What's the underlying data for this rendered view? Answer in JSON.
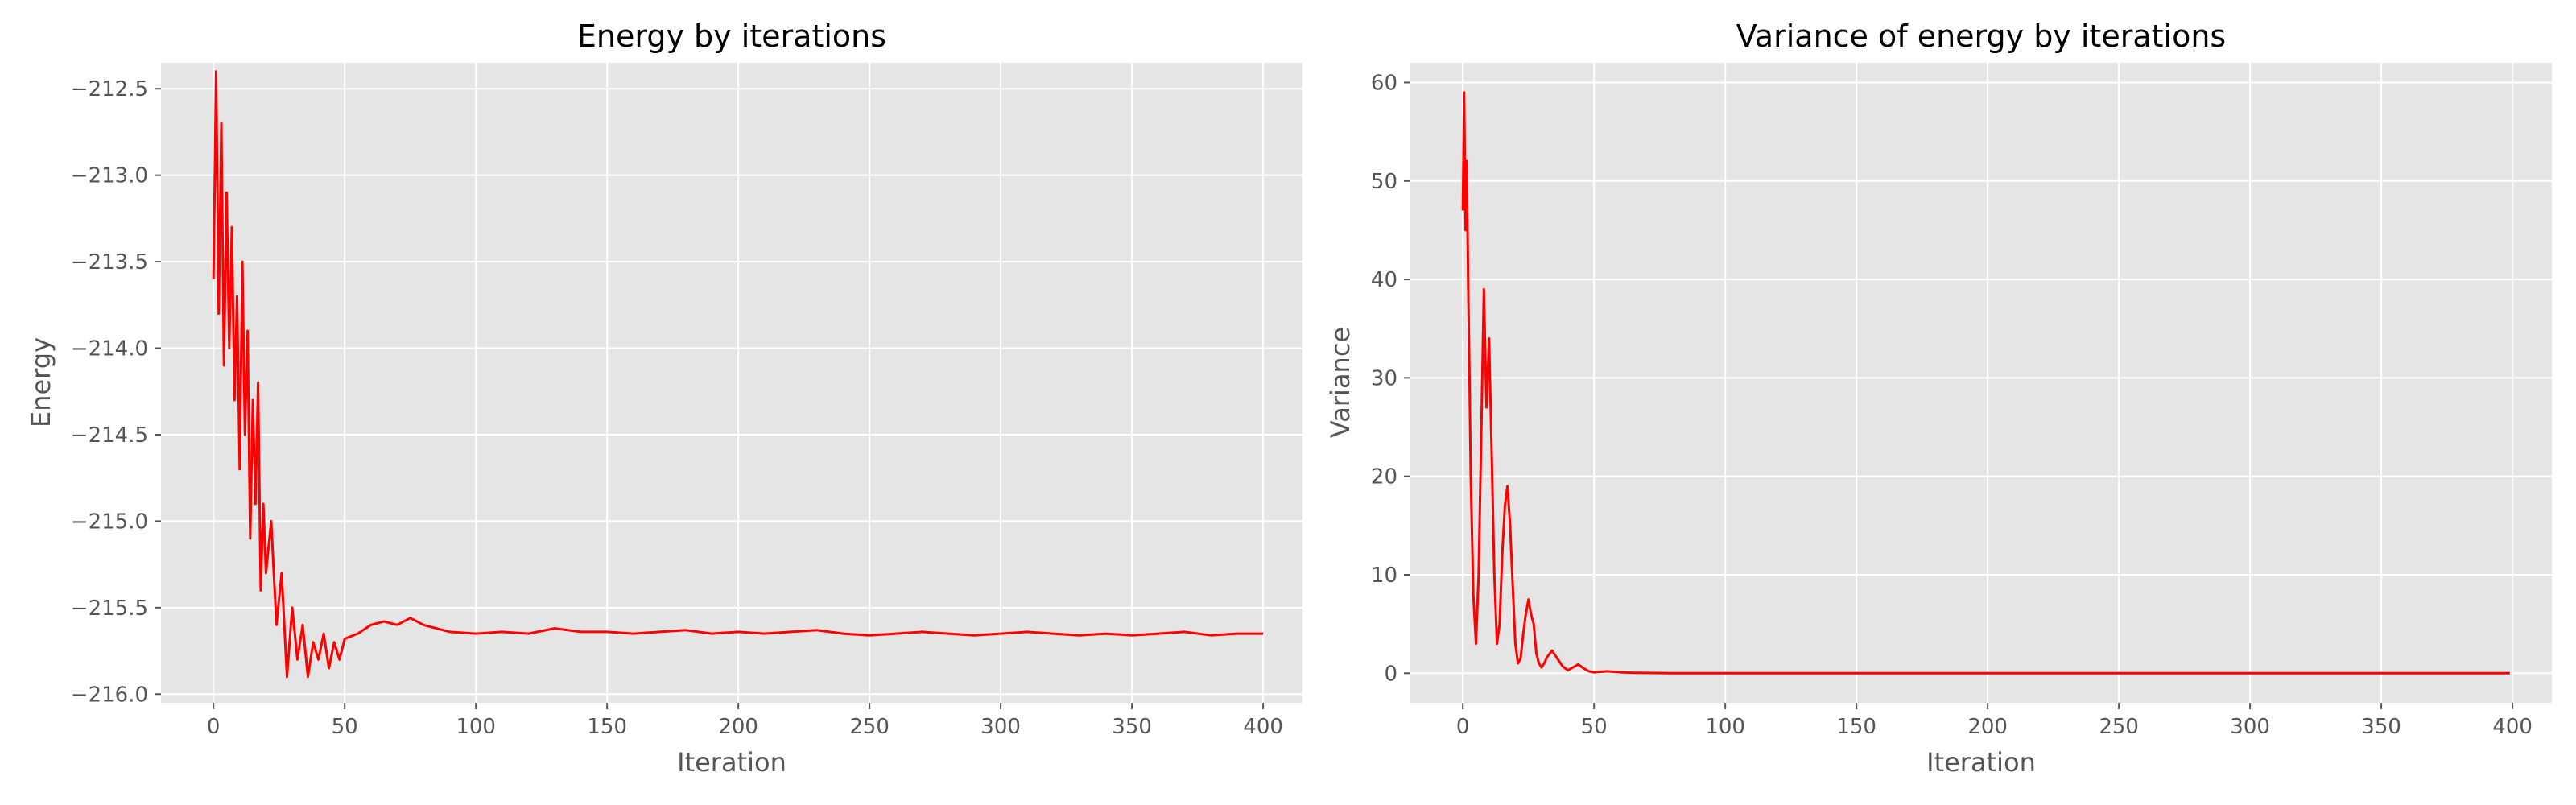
{
  "chart_data": [
    {
      "type": "line",
      "title": "Energy by iterations",
      "xlabel": "Iteration",
      "ylabel": "Energy",
      "xlim": [
        -20,
        415
      ],
      "ylim": [
        -216.05,
        -212.35
      ],
      "xticks": [
        0,
        50,
        100,
        150,
        200,
        250,
        300,
        350,
        400
      ],
      "yticks": [
        -216.0,
        -215.5,
        -215.0,
        -214.5,
        -214.0,
        -213.5,
        -213.0,
        -212.5
      ],
      "ytick_labels": [
        "−216.0",
        "−215.5",
        "−215.0",
        "−214.5",
        "−214.0",
        "−213.5",
        "−213.0",
        "−212.5"
      ],
      "grid": true,
      "color": "#ff0000",
      "series": [
        {
          "x": [
            0,
            1,
            2,
            3,
            4,
            5,
            6,
            7,
            8,
            9,
            10,
            11,
            12,
            13,
            14,
            15,
            16,
            17,
            18,
            19,
            20,
            22,
            24,
            26,
            28,
            30,
            32,
            34,
            36,
            38,
            40,
            42,
            44,
            46,
            48,
            50,
            55,
            60,
            65,
            70,
            75,
            80,
            90,
            100,
            110,
            120,
            130,
            140,
            150,
            160,
            170,
            180,
            190,
            200,
            210,
            220,
            230,
            240,
            250,
            260,
            270,
            280,
            290,
            300,
            310,
            320,
            330,
            340,
            350,
            360,
            370,
            380,
            390,
            400
          ],
          "y": [
            -213.6,
            -212.4,
            -213.8,
            -212.7,
            -214.1,
            -213.1,
            -214.0,
            -213.3,
            -214.3,
            -213.7,
            -214.7,
            -213.5,
            -214.5,
            -213.9,
            -215.1,
            -214.3,
            -214.9,
            -214.2,
            -215.4,
            -214.9,
            -215.3,
            -215.0,
            -215.6,
            -215.3,
            -215.9,
            -215.5,
            -215.8,
            -215.6,
            -215.9,
            -215.7,
            -215.8,
            -215.65,
            -215.85,
            -215.7,
            -215.8,
            -215.68,
            -215.65,
            -215.6,
            -215.58,
            -215.6,
            -215.56,
            -215.6,
            -215.64,
            -215.65,
            -215.64,
            -215.65,
            -215.62,
            -215.64,
            -215.64,
            -215.65,
            -215.64,
            -215.63,
            -215.65,
            -215.64,
            -215.65,
            -215.64,
            -215.63,
            -215.65,
            -215.66,
            -215.65,
            -215.64,
            -215.65,
            -215.66,
            -215.65,
            -215.64,
            -215.65,
            -215.66,
            -215.65,
            -215.66,
            -215.65,
            -215.64,
            -215.66,
            -215.65,
            -215.65
          ]
        }
      ]
    },
    {
      "type": "line",
      "title": "Variance of energy by iterations",
      "xlabel": "Iteration",
      "ylabel": "Variance",
      "xlim": [
        -20,
        415
      ],
      "ylim": [
        -3,
        62
      ],
      "xticks": [
        0,
        50,
        100,
        150,
        200,
        250,
        300,
        350,
        400
      ],
      "yticks": [
        0,
        10,
        20,
        30,
        40,
        50,
        60
      ],
      "ytick_labels": [
        "0",
        "10",
        "20",
        "30",
        "40",
        "50",
        "60"
      ],
      "grid": true,
      "color": "#ff0000",
      "series": [
        {
          "x": [
            0,
            0.5,
            1,
            1.5,
            2,
            2.5,
            3,
            4,
            5,
            6,
            7,
            8,
            9,
            10,
            11,
            12,
            13,
            14,
            15,
            16,
            17,
            18,
            19,
            20,
            21,
            22,
            23,
            24,
            25,
            26,
            27,
            28,
            29,
            30,
            31,
            32,
            34,
            36,
            38,
            40,
            42,
            44,
            46,
            48,
            50,
            55,
            60,
            65,
            70,
            80,
            100,
            150,
            200,
            250,
            300,
            350,
            399
          ],
          "y": [
            47,
            59,
            45,
            52,
            40,
            31,
            20,
            8,
            3,
            10,
            24,
            39,
            27,
            34,
            22,
            10,
            3,
            5,
            12,
            17,
            19,
            15,
            9,
            3,
            1,
            1.5,
            4,
            6,
            7.5,
            6,
            5,
            2,
            1,
            0.6,
            1,
            1.6,
            2.3,
            1.5,
            0.7,
            0.3,
            0.6,
            0.9,
            0.5,
            0.2,
            0.1,
            0.2,
            0.1,
            0.05,
            0.03,
            0.01,
            0.01,
            0.01,
            0.01,
            0.01,
            0.01,
            0.01,
            0.01
          ]
        }
      ]
    }
  ]
}
